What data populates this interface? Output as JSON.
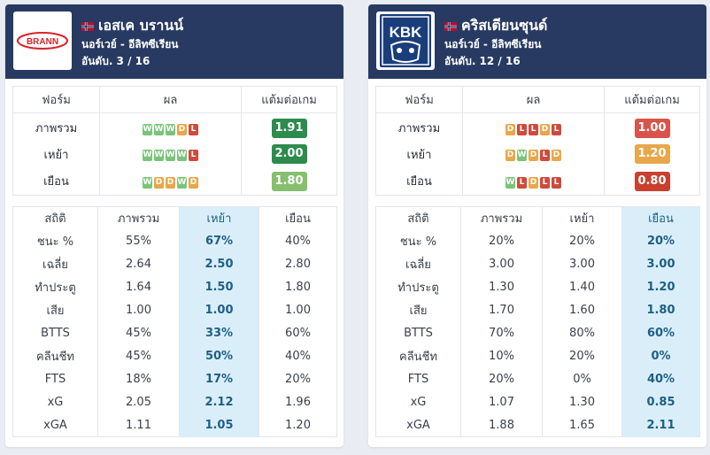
{
  "colors": {
    "header_bg": "#283a62",
    "win": "#7ac47a",
    "draw": "#e8a74a",
    "loss": "#cf4a3c",
    "highlight_col": "#daeefa"
  },
  "left": {
    "logo_text": "BRANN",
    "flag": "norway-flag-icon",
    "team_name": "เอสเค บรานน์",
    "league": "นอร์เวย์ - อีลิทซีเรียน",
    "rank": "อันดับ. 3 / 16",
    "form_headers": [
      "ฟอร์ม",
      "ผล",
      "แต้มต่อเกม"
    ],
    "form_rows": [
      {
        "label": "ภาพรวม",
        "results": [
          "W",
          "W",
          "W",
          "D",
          "L"
        ],
        "ppg": "1.91",
        "ppg_color": "#2e8b4e"
      },
      {
        "label": "เหย้า",
        "results": [
          "W",
          "W",
          "W",
          "W",
          "L"
        ],
        "ppg": "2.00",
        "ppg_color": "#2e8b4e"
      },
      {
        "label": "เยือน",
        "results": [
          "W",
          "D",
          "D",
          "W",
          "D"
        ],
        "ppg": "1.80",
        "ppg_color": "#86bf6e"
      }
    ],
    "stats_headers": [
      "สถิติ",
      "ภาพรวม",
      "เหย้า",
      "เยือน"
    ],
    "highlight_col": 2,
    "stats_rows": [
      [
        "ชนะ %",
        "55%",
        "67%",
        "40%"
      ],
      [
        "เฉลี่ย",
        "2.64",
        "2.50",
        "2.80"
      ],
      [
        "ทำประตู",
        "1.64",
        "1.50",
        "1.80"
      ],
      [
        "เสีย",
        "1.00",
        "1.00",
        "1.00"
      ],
      [
        "BTTS",
        "45%",
        "33%",
        "60%"
      ],
      [
        "คลีนชีท",
        "45%",
        "50%",
        "40%"
      ],
      [
        "FTS",
        "18%",
        "17%",
        "20%"
      ],
      [
        "xG",
        "2.05",
        "2.12",
        "1.96"
      ],
      [
        "xGA",
        "1.11",
        "1.05",
        "1.20"
      ]
    ]
  },
  "right": {
    "logo_text": "KBK",
    "flag": "norway-flag-icon",
    "team_name": "คริสเตียนซุนด์",
    "league": "นอร์เวย์ - อีลิทซีเรียน",
    "rank": "อันดับ. 12 / 16",
    "form_headers": [
      "ฟอร์ม",
      "ผล",
      "แต้มต่อเกม"
    ],
    "form_rows": [
      {
        "label": "ภาพรวม",
        "results": [
          "D",
          "L",
          "L",
          "D",
          "L"
        ],
        "ppg": "1.00",
        "ppg_color": "#d9534a"
      },
      {
        "label": "เหย้า",
        "results": [
          "D",
          "W",
          "D",
          "L",
          "D"
        ],
        "ppg": "1.20",
        "ppg_color": "#e8a74a"
      },
      {
        "label": "เยือน",
        "results": [
          "W",
          "L",
          "D",
          "L",
          "L"
        ],
        "ppg": "0.80",
        "ppg_color": "#c9402f"
      }
    ],
    "stats_headers": [
      "สถิติ",
      "ภาพรวม",
      "เหย้า",
      "เยือน"
    ],
    "highlight_col": 3,
    "stats_rows": [
      [
        "ชนะ %",
        "20%",
        "20%",
        "20%"
      ],
      [
        "เฉลี่ย",
        "3.00",
        "3.00",
        "3.00"
      ],
      [
        "ทำประตู",
        "1.30",
        "1.40",
        "1.20"
      ],
      [
        "เสีย",
        "1.70",
        "1.60",
        "1.80"
      ],
      [
        "BTTS",
        "70%",
        "80%",
        "60%"
      ],
      [
        "คลีนชีท",
        "10%",
        "20%",
        "0%"
      ],
      [
        "FTS",
        "20%",
        "0%",
        "40%"
      ],
      [
        "xG",
        "1.07",
        "1.30",
        "0.85"
      ],
      [
        "xGA",
        "1.88",
        "1.65",
        "2.11"
      ]
    ]
  }
}
